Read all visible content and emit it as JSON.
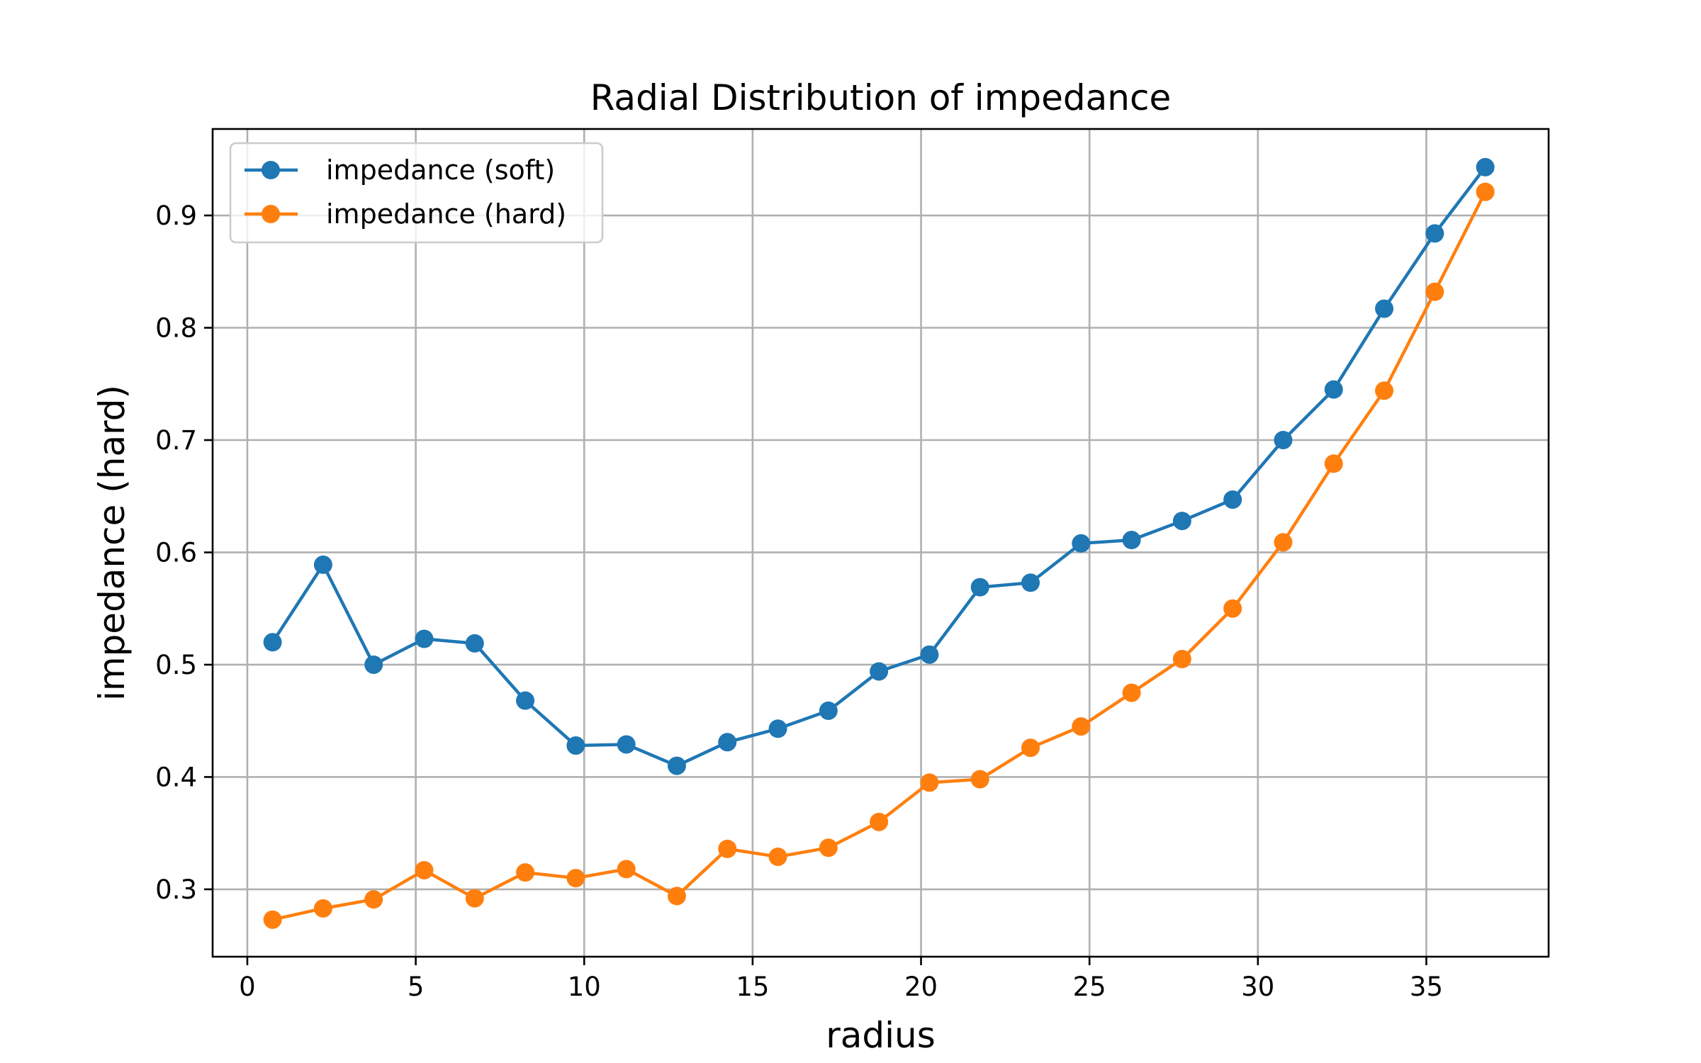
{
  "chart_data": {
    "type": "line",
    "title": "Radial Distribution of impedance",
    "xlabel": "radius",
    "ylabel": "impedance (hard)",
    "xlim": [
      -1.03,
      38.63
    ],
    "ylim": [
      0.24,
      0.977
    ],
    "xticks": [
      0,
      5,
      10,
      15,
      20,
      25,
      30,
      35
    ],
    "xtick_labels": [
      "0",
      "5",
      "10",
      "15",
      "20",
      "25",
      "30",
      "35"
    ],
    "yticks": [
      0.3,
      0.4,
      0.5,
      0.6,
      0.7,
      0.8,
      0.9
    ],
    "ytick_labels": [
      "0.3",
      "0.4",
      "0.5",
      "0.6",
      "0.7",
      "0.8",
      "0.9"
    ],
    "grid": true,
    "legend_position": "upper-left",
    "x": [
      0.75,
      2.25,
      3.75,
      5.25,
      6.75,
      8.25,
      9.75,
      11.25,
      12.75,
      14.25,
      15.75,
      17.25,
      18.75,
      20.25,
      21.75,
      23.25,
      24.75,
      26.25,
      27.75,
      29.25,
      30.75,
      32.25,
      33.75,
      35.25,
      36.75
    ],
    "series": [
      {
        "name": "impedance (soft)",
        "color": "#1f77b4",
        "marker": "circle",
        "values": [
          0.52,
          0.589,
          0.5,
          0.523,
          0.519,
          0.468,
          0.428,
          0.429,
          0.41,
          0.431,
          0.443,
          0.459,
          0.494,
          0.509,
          0.569,
          0.573,
          0.608,
          0.611,
          0.628,
          0.647,
          0.7,
          0.745,
          0.817,
          0.884,
          0.943
        ]
      },
      {
        "name": "impedance (hard)",
        "color": "#ff7f0e",
        "marker": "circle",
        "values": [
          0.273,
          0.283,
          0.291,
          0.317,
          0.292,
          0.315,
          0.31,
          0.318,
          0.294,
          0.336,
          0.329,
          0.337,
          0.36,
          0.395,
          0.398,
          0.426,
          0.445,
          0.475,
          0.505,
          0.55,
          0.609,
          0.679,
          0.744,
          0.832,
          0.921
        ]
      }
    ]
  }
}
